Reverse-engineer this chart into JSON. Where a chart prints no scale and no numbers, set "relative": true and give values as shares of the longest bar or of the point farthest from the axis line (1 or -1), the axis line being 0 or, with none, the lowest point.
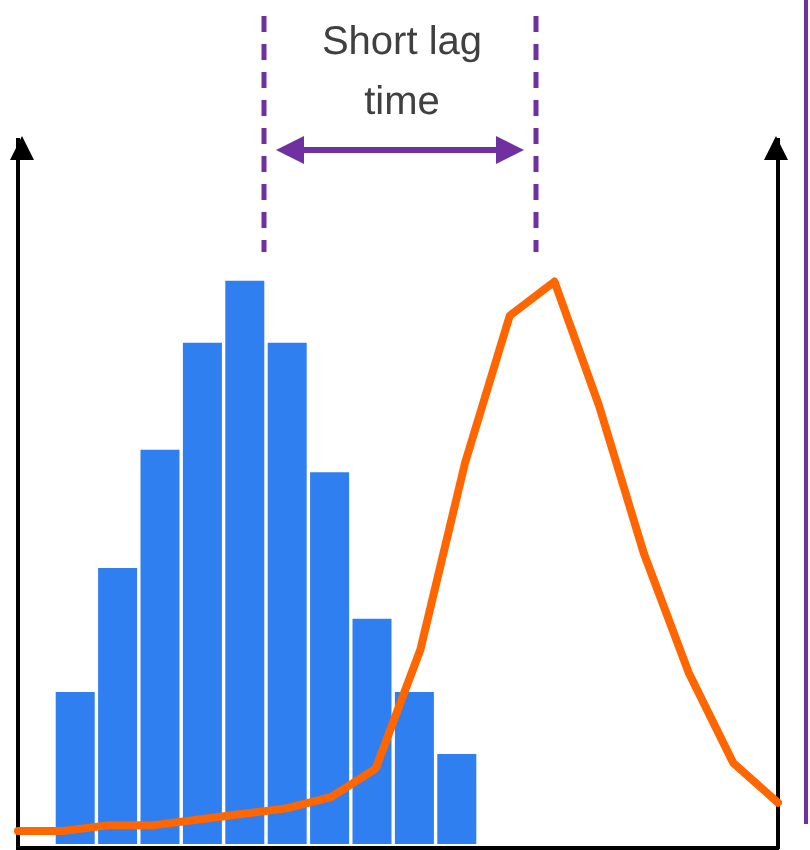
{
  "chart_data": [
    {
      "type": "bar",
      "relative": true,
      "categories": [
        null,
        null,
        null,
        null,
        null,
        null,
        null,
        null,
        null,
        null
      ],
      "color": "#2f7ff0",
      "values": [
        0.27,
        0.49,
        0.7,
        0.89,
        1,
        0.89,
        0.66,
        0.4,
        0.27,
        0.16
      ],
      "grid": false,
      "legend": false
    },
    {
      "type": "line",
      "relative": true,
      "categories": [
        null,
        null,
        null,
        null,
        null,
        null,
        null,
        null,
        null,
        null,
        null,
        null,
        null,
        null,
        null,
        null,
        null,
        null
      ],
      "color": "#ff6600",
      "values": [
        0.03,
        0.03,
        0.04,
        0.04,
        0.05,
        0.06,
        0.07,
        0.09,
        0.14,
        0.35,
        0.68,
        0.94,
        1,
        0.78,
        0.52,
        0.31,
        0.15,
        0.08
      ],
      "annotations": [
        "Short lag time"
      ],
      "grid": false,
      "legend": false
    }
  ]
}
